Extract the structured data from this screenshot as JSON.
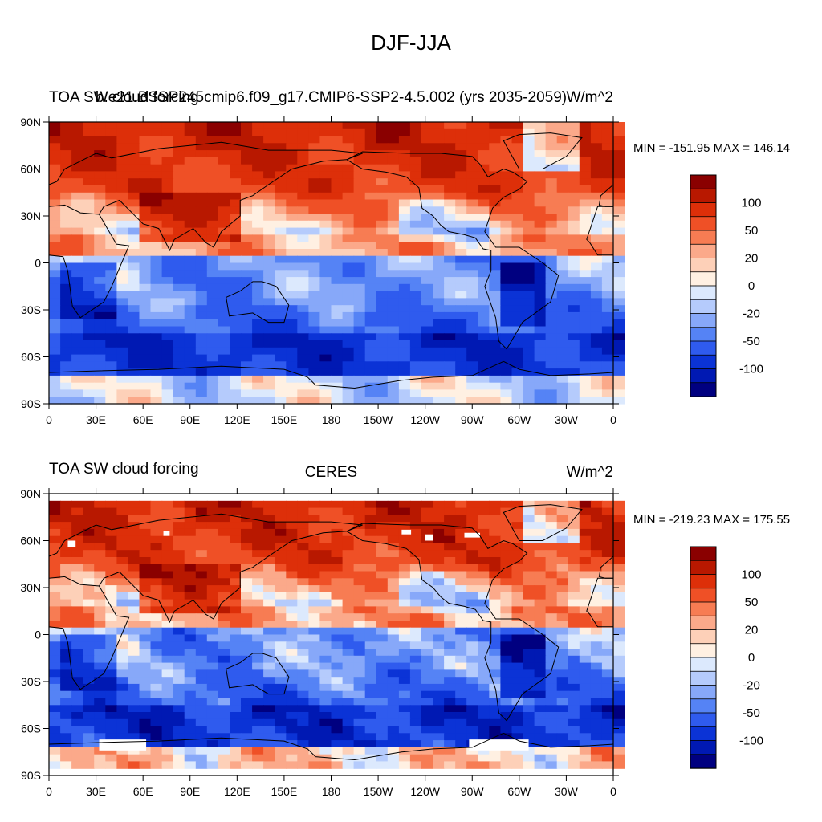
{
  "title": "DJF-JJA",
  "colorbar": {
    "levels": [
      -100,
      -50,
      -20,
      0,
      20,
      50,
      100
    ],
    "labels": [
      "100",
      "50",
      "20",
      "0",
      "-20",
      "-50",
      "-100"
    ],
    "colors": [
      "#000080",
      "#0019b3",
      "#0b33d6",
      "#2f5bee",
      "#5583f5",
      "#87a8f9",
      "#b5cbfc",
      "#dce9fd",
      "#fff0e2",
      "#fdd0b8",
      "#fba98a",
      "#f77c53",
      "#ef5026",
      "#dd2f09",
      "#b81800",
      "#8a0000"
    ]
  },
  "axes": {
    "lat_ticks": [
      "90N",
      "60N",
      "30N",
      "0",
      "30S",
      "60S",
      "90S"
    ],
    "lon_ticks": [
      "0",
      "30E",
      "60E",
      "90E",
      "120E",
      "150E",
      "180",
      "150W",
      "120W",
      "90W",
      "60W",
      "30W",
      "0"
    ]
  },
  "panels": [
    {
      "left_title": "TOA SW cloud forcing",
      "center_title": "b.e21.BSSP245cmip6.f09_g17.CMIP6-SSP2-4.5.002 (yrs 2035-2059)",
      "units": "W/m^2",
      "minmax": "MIN = -151.95 MAX = 146.14"
    },
    {
      "left_title": "TOA SW cloud forcing",
      "center_title": "CERES",
      "units": "W/m^2",
      "minmax": "MIN = -219.23 MAX = 175.55"
    }
  ],
  "chart_data": [
    {
      "type": "heatmap",
      "title": "DJF-JJA",
      "subtitle": "b.e21.BSSP245cmip6.f09_g17.CMIP6-SSP2-4.5.002 (yrs 2035-2059)",
      "variable": "TOA SW cloud forcing",
      "units": "W/m^2",
      "min": -151.95,
      "max": 146.14,
      "xlim": [
        0,
        360
      ],
      "ylim": [
        -90,
        90
      ],
      "contour_levels": [
        -100,
        -50,
        -20,
        0,
        20,
        50,
        100
      ]
    },
    {
      "type": "heatmap",
      "title": "DJF-JJA",
      "subtitle": "CERES",
      "variable": "TOA SW cloud forcing",
      "units": "W/m^2",
      "min": -219.23,
      "max": 175.55,
      "xlim": [
        0,
        360
      ],
      "ylim": [
        -90,
        90
      ],
      "contour_levels": [
        -100,
        -50,
        -20,
        0,
        20,
        50,
        100
      ]
    }
  ]
}
